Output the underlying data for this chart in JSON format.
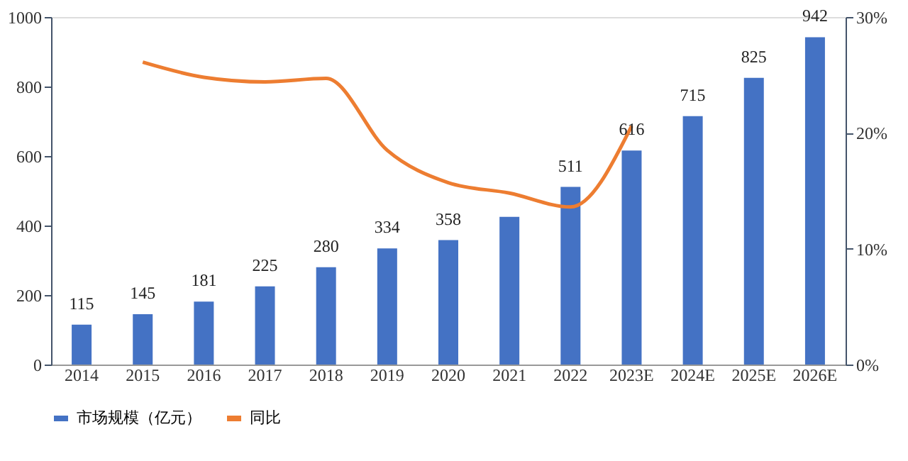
{
  "chart_data": {
    "type": "bar",
    "categories": [
      "2014",
      "2015",
      "2016",
      "2017",
      "2018",
      "2019",
      "2020",
      "2021",
      "2022",
      "2023E",
      "2024E",
      "2025E",
      "2026E"
    ],
    "series": [
      {
        "name": "市场规模（亿元）",
        "color": "#4472c4",
        "values": [
          115,
          145,
          181,
          225,
          280,
          334,
          358,
          425,
          511,
          616,
          715,
          825,
          942
        ],
        "value_labels": [
          "115",
          "145",
          "181",
          "225",
          "280",
          "334",
          "358",
          null,
          "511",
          "616",
          "715",
          "825",
          "942"
        ]
      },
      {
        "name": "同比",
        "type": "line",
        "axis": "y2",
        "color": "#ed7d31",
        "values": [
          null,
          26.1,
          24.8,
          24.4,
          24.7,
          18.5,
          15.7,
          14.8,
          13.6,
          20.6,
          null,
          null,
          null
        ]
      }
    ],
    "ylim": [
      0,
      1000
    ],
    "yticks": [
      0,
      200,
      400,
      600,
      800,
      1000
    ],
    "y2lim": [
      0,
      30
    ],
    "y2ticks": [
      {
        "value": 0,
        "label": "0%"
      },
      {
        "value": 10,
        "label": "10%"
      },
      {
        "value": 20,
        "label": "20%"
      },
      {
        "value": 30,
        "label": "30%"
      }
    ],
    "grid": false,
    "legend": "bottom",
    "line_style": "solid",
    "marker": "none"
  }
}
